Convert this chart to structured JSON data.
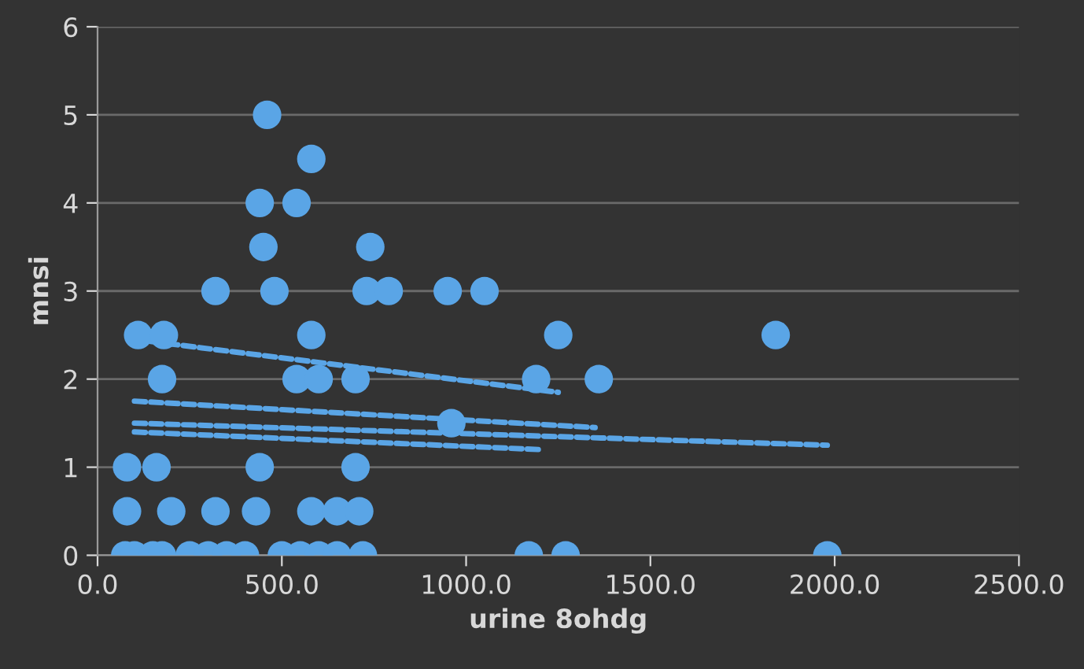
{
  "chart_data": {
    "type": "scatter",
    "xlabel": "urine 8ohdg",
    "ylabel": "mnsi",
    "xlim": [
      0,
      2500
    ],
    "xticks": [
      {
        "value": 0,
        "label": "0.0"
      },
      {
        "value": 500,
        "label": "500.0"
      },
      {
        "value": 1000,
        "label": "1000.0"
      },
      {
        "value": 1500,
        "label": "1500.0"
      },
      {
        "value": 2000,
        "label": "2000.0"
      },
      {
        "value": 2500,
        "label": "2500.0"
      }
    ],
    "ylim": [
      0,
      6
    ],
    "yticks": [
      0,
      1,
      2,
      3,
      4,
      5,
      6
    ],
    "grid": "y",
    "series": [
      {
        "marker": "circle",
        "color": "#5aa5e6",
        "x": [
          75,
          100,
          150,
          175,
          250,
          300,
          350,
          400,
          500,
          550,
          600,
          650,
          720,
          1170,
          1270,
          1980,
          80,
          200,
          320,
          430,
          580,
          650,
          710,
          80,
          160,
          440,
          700,
          960,
          175,
          540,
          600,
          700,
          1190,
          1360,
          110,
          180,
          580,
          1250,
          1840,
          320,
          480,
          730,
          790,
          950,
          1050,
          450,
          740,
          440,
          540,
          580,
          460
        ],
        "values": [
          0,
          0,
          0,
          0,
          0,
          0,
          0,
          0,
          0,
          0,
          0,
          0,
          0,
          0,
          0,
          0,
          0.5,
          0.5,
          0.5,
          0.5,
          0.5,
          0.5,
          0.5,
          1,
          1,
          1,
          1,
          1.5,
          2,
          2,
          2,
          2,
          2,
          2,
          2.5,
          2.5,
          2.5,
          2.5,
          2.5,
          3,
          3,
          3,
          3,
          3,
          3,
          3.5,
          3.5,
          4,
          4,
          4.5,
          5
        ]
      },
      {
        "type": "line",
        "line_style": "dashed",
        "color": "#5aa5e6",
        "x": [
          100,
          1250
        ],
        "values": [
          2.45,
          1.85
        ]
      },
      {
        "type": "line",
        "line_style": "dashed",
        "color": "#5aa5e6",
        "x": [
          100,
          1350
        ],
        "values": [
          1.75,
          1.45
        ]
      },
      {
        "type": "line",
        "line_style": "dashed",
        "color": "#5aa5e6",
        "x": [
          100,
          1980
        ],
        "values": [
          1.5,
          1.25
        ]
      },
      {
        "type": "line",
        "line_style": "dashed",
        "color": "#5aa5e6",
        "x": [
          100,
          1200
        ],
        "values": [
          1.4,
          1.2
        ]
      }
    ]
  }
}
